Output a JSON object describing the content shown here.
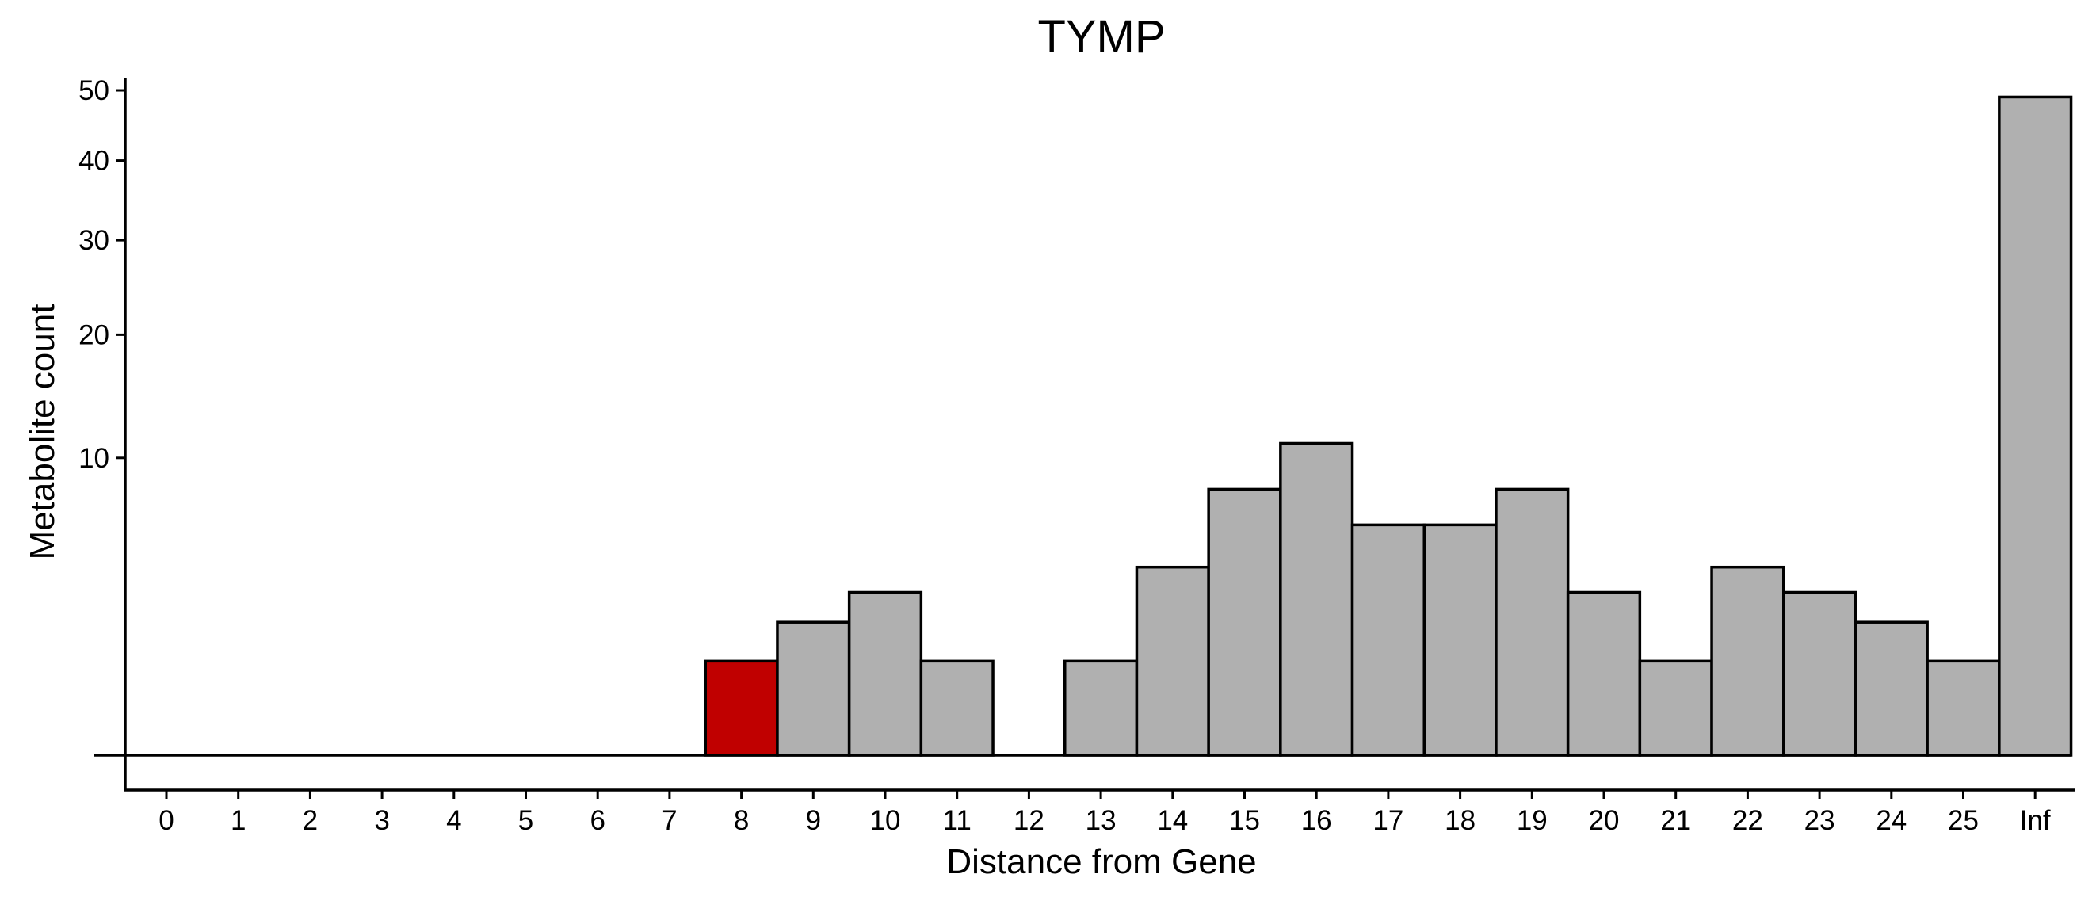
{
  "chart_data": {
    "type": "bar",
    "title": "TYMP",
    "xlabel": "Distance from Gene",
    "ylabel": "Metabolite count",
    "categories": [
      "0",
      "1",
      "2",
      "3",
      "4",
      "5",
      "6",
      "7",
      "8",
      "9",
      "10",
      "11",
      "12",
      "13",
      "14",
      "15",
      "16",
      "17",
      "18",
      "19",
      "20",
      "21",
      "22",
      "23",
      "24",
      "25",
      "Inf"
    ],
    "values": [
      0,
      0,
      0,
      0,
      0,
      0,
      0,
      0,
      1,
      2,
      3,
      1,
      0,
      1,
      4,
      8,
      11,
      6,
      6,
      8,
      3,
      1,
      4,
      3,
      2,
      1,
      49
    ],
    "highlight_category": "8",
    "y_scale": "sqrt",
    "ylim": [
      0,
      52
    ],
    "yticks": [
      10,
      20,
      30,
      40,
      50
    ],
    "grid": false,
    "legend": "none",
    "colors": {
      "bar": "#b0b0b0",
      "highlight": "#c00000",
      "outline": "#000000"
    }
  }
}
